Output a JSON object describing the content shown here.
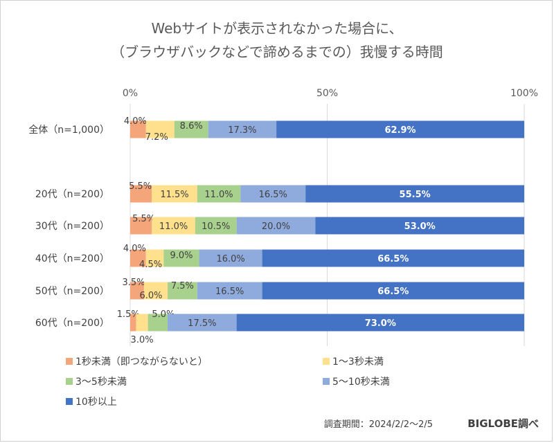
{
  "chart_data": {
    "type": "bar",
    "orientation": "horizontal",
    "stacked": true,
    "title": [
      "Webサイトが表示されなかった場合に、",
      "（ブラウザバックなどで諦めるまでの）我慢する時間"
    ],
    "categories": [
      "全体（n=1,000）",
      "20代（n=200）",
      "30代（n=200）",
      "40代（n=200）",
      "50代（n=200）",
      "60代（n=200）"
    ],
    "series": [
      {
        "name": "1秒未満（即つながらないと）",
        "color": "#F4A57A",
        "values": [
          4.0,
          5.5,
          5.5,
          4.0,
          3.5,
          1.5
        ]
      },
      {
        "name": "1～3秒未満",
        "color": "#FFE08C",
        "values": [
          7.2,
          11.5,
          11.0,
          4.5,
          6.0,
          3.0
        ]
      },
      {
        "name": "3～5秒未満",
        "color": "#A9D18E",
        "values": [
          8.6,
          11.0,
          10.5,
          9.0,
          7.5,
          5.0
        ]
      },
      {
        "name": "5～10秒未満",
        "color": "#8FAADC",
        "values": [
          17.3,
          16.5,
          20.0,
          16.0,
          16.5,
          17.5
        ]
      },
      {
        "name": "10秒以上",
        "color": "#4472C4",
        "values": [
          62.9,
          55.5,
          53.0,
          66.5,
          66.5,
          73.0
        ]
      }
    ],
    "xticks": [
      "0%",
      "50%",
      "100%"
    ],
    "xlim": [
      0,
      100
    ],
    "grid": true,
    "legend_position": "bottom",
    "value_format": "percent, 1 decimal"
  },
  "footer": {
    "survey_period": "調査期間：2024/2/2～2/5",
    "source": "BIGLOBE調べ"
  }
}
